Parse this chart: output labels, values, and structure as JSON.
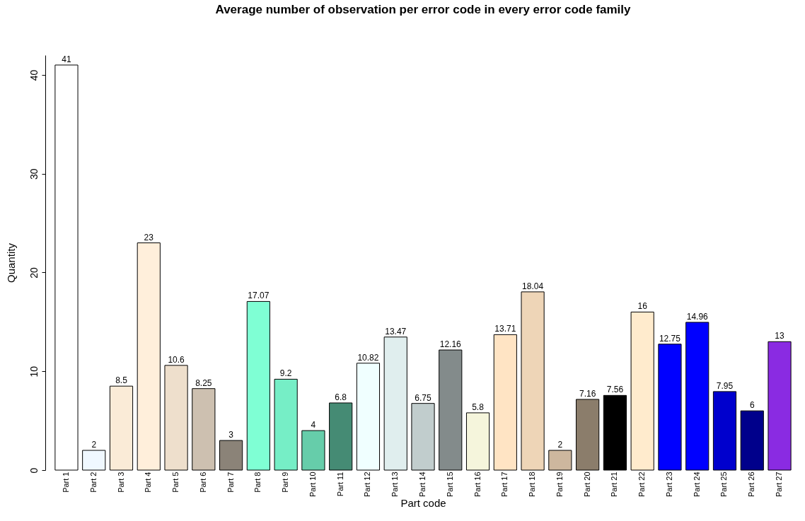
{
  "chart_data": {
    "type": "bar",
    "title": "Average number of observation per error code in every error code family",
    "xlabel": "Part code",
    "ylabel": "Quantity",
    "categories": [
      "Part 1",
      "Part 2",
      "Part 3",
      "Part 4",
      "Part 5",
      "Part 6",
      "Part 7",
      "Part 8",
      "Part 9",
      "Part 10",
      "Part 11",
      "Part 12",
      "Part 13",
      "Part 14",
      "Part 15",
      "Part 16",
      "Part 17",
      "Part 18",
      "Part 19",
      "Part 20",
      "Part 21",
      "Part 22",
      "Part 23",
      "Part 24",
      "Part 25",
      "Part 26",
      "Part 27"
    ],
    "values": [
      41,
      2,
      8.5,
      23,
      10.6,
      8.25,
      3,
      17.07,
      9.2,
      4,
      6.8,
      10.82,
      13.47,
      6.75,
      12.16,
      5.8,
      13.71,
      18.04,
      2,
      7.16,
      7.56,
      16,
      12.75,
      14.96,
      7.95,
      6,
      13
    ],
    "colors": [
      "#ffffff",
      "#f0f8ff",
      "#faebd7",
      "#ffefdb",
      "#eedfcc",
      "#cdc0b0",
      "#8b8378",
      "#7fffd4",
      "#76eec6",
      "#66cdaa",
      "#458b74",
      "#f0ffff",
      "#e0eeee",
      "#c1cdcd",
      "#838b8b",
      "#f5f5dc",
      "#ffe4c4",
      "#eed5b7",
      "#cdb79e",
      "#8b7d6b",
      "#000000",
      "#ffebcd",
      "#0000ff",
      "#0000ff",
      "#0000cd",
      "#00008b",
      "#8a2be2"
    ],
    "ylim": [
      0,
      42
    ],
    "yticks": [
      0,
      10,
      20,
      30,
      40
    ],
    "data_labels": true,
    "grid": false
  }
}
